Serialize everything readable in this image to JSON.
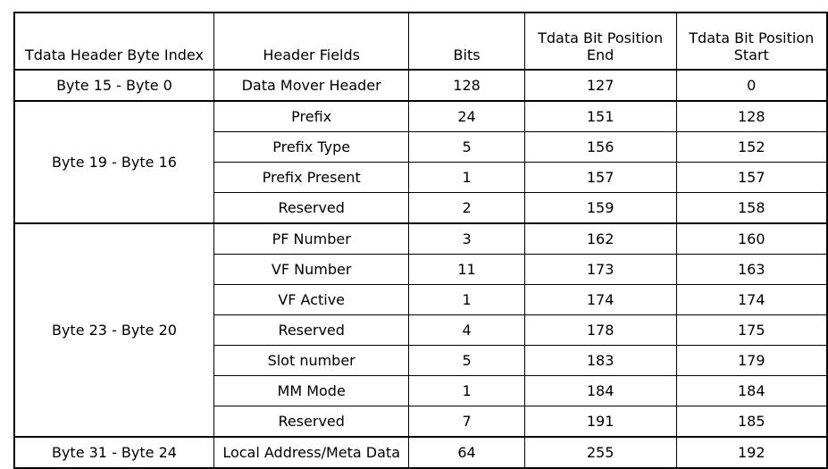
{
  "headers": [
    "Tdata Header Byte Index",
    "Header Fields",
    "Bits",
    "Tdata Bit Position End",
    "Tdata Bit Position Start"
  ],
  "groups": [
    {
      "byte_index": "Byte 15 - Byte 0",
      "rows": [
        {
          "field": "Data Mover Header",
          "bits": "128",
          "end": "127",
          "start": "0"
        }
      ]
    },
    {
      "byte_index": "Byte 19 - Byte 16",
      "rows": [
        {
          "field": "Prefix",
          "bits": "24",
          "end": "151",
          "start": "128"
        },
        {
          "field": "Prefix Type",
          "bits": "5",
          "end": "156",
          "start": "152"
        },
        {
          "field": "Prefix Present",
          "bits": "1",
          "end": "157",
          "start": "157"
        },
        {
          "field": "Reserved",
          "bits": "2",
          "end": "159",
          "start": "158"
        }
      ]
    },
    {
      "byte_index": "Byte 23 - Byte 20",
      "rows": [
        {
          "field": "PF Number",
          "bits": "3",
          "end": "162",
          "start": "160"
        },
        {
          "field": "VF Number",
          "bits": "11",
          "end": "173",
          "start": "163"
        },
        {
          "field": "VF Active",
          "bits": "1",
          "end": "174",
          "start": "174"
        },
        {
          "field": "Reserved",
          "bits": "4",
          "end": "178",
          "start": "175"
        },
        {
          "field": "Slot number",
          "bits": "5",
          "end": "183",
          "start": "179"
        },
        {
          "field": "MM Mode",
          "bits": "1",
          "end": "184",
          "start": "184"
        },
        {
          "field": "Reserved",
          "bits": "7",
          "end": "191",
          "start": "185"
        }
      ]
    },
    {
      "byte_index": "Byte 31 - Byte 24",
      "rows": [
        {
          "field": "Local Address/Meta Data",
          "bits": "64",
          "end": "255",
          "start": "192"
        }
      ]
    }
  ]
}
